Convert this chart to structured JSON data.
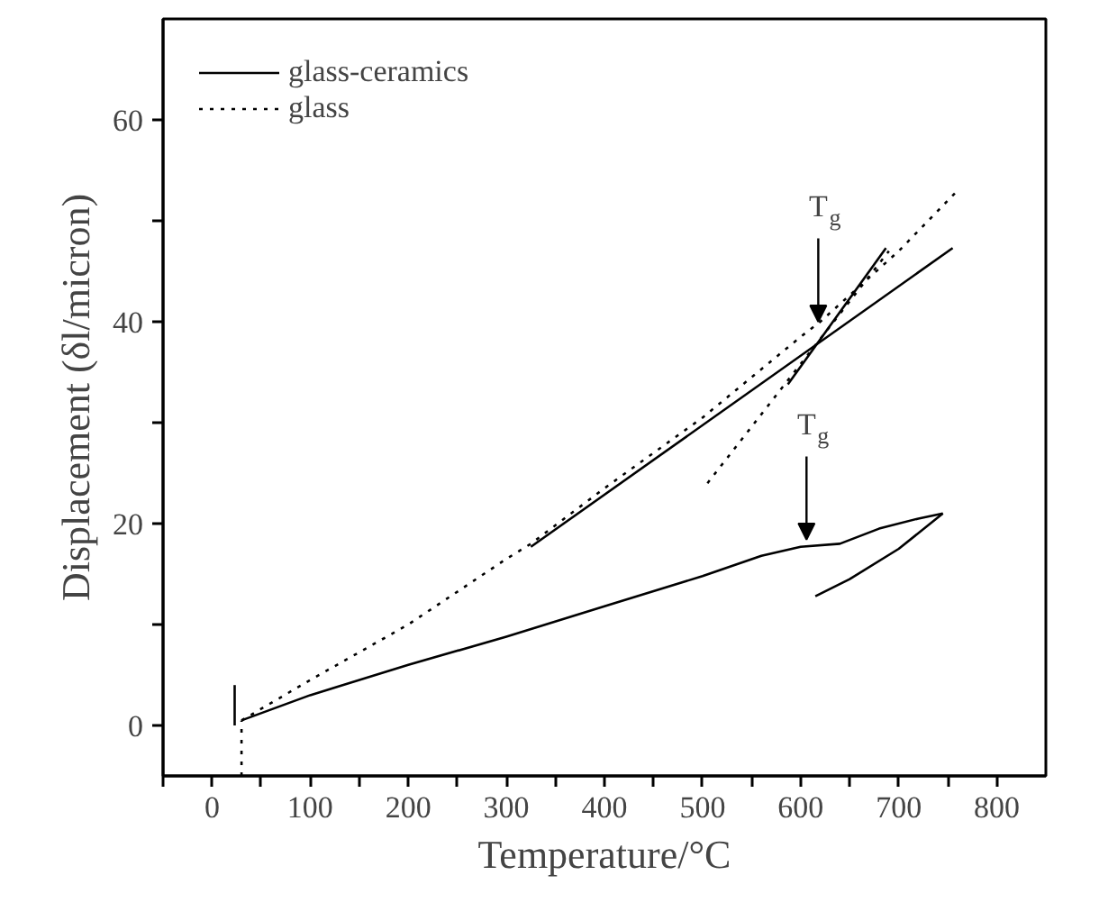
{
  "chart_data": {
    "type": "line",
    "xlabel": "Temperature/°C",
    "ylabel": "Displacement (δl/micron)",
    "xlim": [
      -50,
      850
    ],
    "ylim": [
      -5,
      70
    ],
    "xticks": [
      {
        "value": -50,
        "label": null
      },
      0,
      {
        "value": 50,
        "label": null
      },
      100,
      {
        "value": 150,
        "label": null
      },
      200,
      {
        "value": 250,
        "label": null
      },
      300,
      {
        "value": 350,
        "label": null
      },
      400,
      {
        "value": 450,
        "label": null
      },
      500,
      {
        "value": 550,
        "label": null
      },
      600,
      {
        "value": 650,
        "label": null
      },
      700,
      {
        "value": 750,
        "label": null
      },
      800
    ],
    "yticks": [
      0,
      {
        "value": 10,
        "label": null
      },
      20,
      {
        "value": 30,
        "label": null
      },
      40,
      {
        "value": 50,
        "label": null
      },
      60
    ],
    "grid": false,
    "legend": "top left",
    "series": [
      {
        "name": "glass-ceramics",
        "color": "#000000",
        "line_style": "solid",
        "x": [
          30,
          100,
          200,
          300,
          400,
          500,
          560,
          600,
          640,
          680,
          720,
          745
        ],
        "values": [
          0.5,
          3,
          6,
          8.8,
          11.8,
          14.8,
          16.8,
          17.7,
          18,
          19.5,
          20.5,
          21
        ]
      },
      {
        "color": "#000000",
        "line_style": "solid",
        "x": [
          745,
          700,
          650,
          615
        ],
        "values": [
          21,
          17.5,
          14.5,
          12.8
        ]
      },
      {
        "color": "#000000",
        "line_style": "solid",
        "x": [
          23,
          23
        ],
        "values": [
          0,
          4
        ]
      },
      {
        "color": "#000000",
        "line_style": "solid",
        "x": [
          325,
          755
        ],
        "values": [
          17.7,
          47.3
        ]
      },
      {
        "color": "#000000",
        "line_style": "solid",
        "x": [
          587,
          687
        ],
        "values": [
          33.8,
          47.3
        ]
      },
      {
        "name": "glass",
        "color": "#000000",
        "line_style": "dotted",
        "x": [
          30,
          100,
          200,
          300,
          325,
          400,
          500,
          600,
          620,
          700,
          760
        ],
        "values": [
          0.5,
          4.5,
          10,
          16.5,
          18,
          23.5,
          30.5,
          38.5,
          40,
          47,
          53
        ]
      },
      {
        "color": "#000000",
        "line_style": "dotted",
        "x": [
          30,
          30
        ],
        "values": [
          -5,
          0.5
        ]
      },
      {
        "color": "#000000",
        "line_style": "dotted",
        "x": [
          505,
          690
        ],
        "values": [
          24,
          47
        ]
      }
    ],
    "annotations": [
      {
        "text": "T$_{g}$",
        "x": 606,
        "y": 18.4
      },
      {
        "text": "T$_{g}$",
        "x": 618,
        "y": 40
      }
    ]
  }
}
